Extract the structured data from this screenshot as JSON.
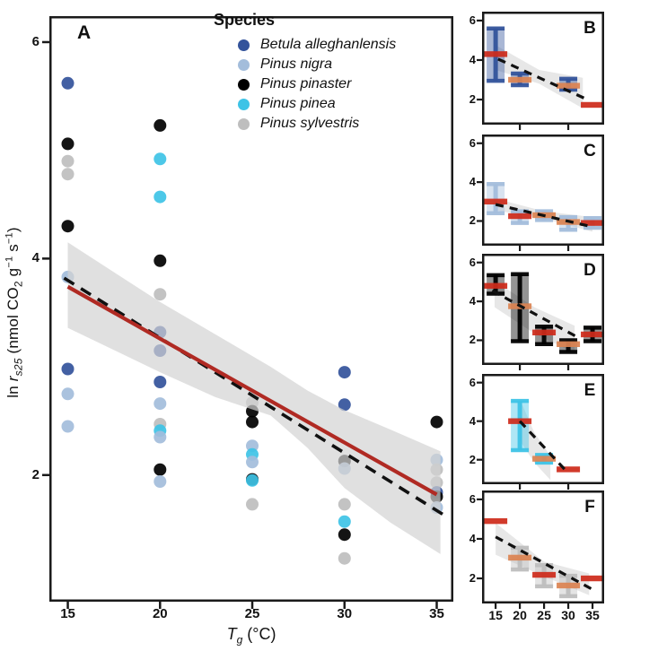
{
  "figure": {
    "species_colors": {
      "betula": "#33539B",
      "nigra": "#A3BDDB",
      "pinaster": "#000000",
      "pinea": "#3EC3E6",
      "sylvestris": "#BEBEBE"
    },
    "accent": {
      "red_line": "#B02A23",
      "mean_red": "#CE2B1B",
      "mean_orange": "#DB8352",
      "band": "#D3D3D3",
      "axis": "#1A1A1A"
    },
    "y_axis_label_parts": [
      {
        "t": "ln "
      },
      {
        "t": "r",
        "i": true
      },
      {
        "t": "s25",
        "sub": true,
        "i": true
      },
      {
        "t": "  (nmol CO"
      },
      {
        "t": "2",
        "sub": true
      },
      {
        "t": " g"
      },
      {
        "t": "−1",
        "sup": true
      },
      {
        "t": " s"
      },
      {
        "t": "−1",
        "sup": true
      },
      {
        "t": ")"
      }
    ],
    "x_axis_label_parts": [
      {
        "t": "T",
        "i": true
      },
      {
        "t": "g",
        "sub": true,
        "i": true
      },
      {
        "t": " (°C)"
      }
    ]
  },
  "legend": {
    "title": "Species",
    "items": [
      {
        "label": "Betula alleghanlensis",
        "color_key": "betula"
      },
      {
        "label": "Pinus nigra",
        "color_key": "nigra"
      },
      {
        "label": "Pinus pinaster",
        "color_key": "pinaster"
      },
      {
        "label": "Pinus pinea",
        "color_key": "pinea"
      },
      {
        "label": "Pinus sylvestris",
        "color_key": "sylvestris"
      }
    ]
  },
  "chart_data": [
    {
      "id": "A",
      "label": "A",
      "type": "scatter",
      "xlabel": "Tg (°C)",
      "ylabel": "ln rs25 (nmol CO2 g-1 s-1)",
      "xlim": [
        14,
        35.9
      ],
      "ylim": [
        0.83,
        6.24
      ],
      "x_ticks": [
        15,
        20,
        25,
        30,
        35
      ],
      "y_ticks": [
        2,
        4,
        6
      ],
      "grid": false,
      "points": [
        [
          15,
          5.62,
          "betula"
        ],
        [
          15,
          5.06,
          "pinaster"
        ],
        [
          15,
          4.9,
          "sylvestris"
        ],
        [
          15,
          4.78,
          "sylvestris"
        ],
        [
          15,
          4.3,
          "pinaster"
        ],
        [
          15,
          3.83,
          "nigra"
        ],
        [
          15,
          2.98,
          "betula"
        ],
        [
          15,
          2.75,
          "nigra"
        ],
        [
          15,
          2.45,
          "nigra"
        ],
        [
          20,
          5.23,
          "pinaster"
        ],
        [
          20,
          4.92,
          "pinea"
        ],
        [
          20,
          4.57,
          "pinea"
        ],
        [
          20,
          3.98,
          "pinaster"
        ],
        [
          20,
          3.67,
          "sylvestris"
        ],
        [
          20,
          3.32,
          "betula"
        ],
        [
          20,
          3.15,
          "betula"
        ],
        [
          20,
          2.86,
          "betula"
        ],
        [
          20,
          2.66,
          "nigra"
        ],
        [
          20,
          2.47,
          "sylvestris"
        ],
        [
          20,
          2.41,
          "pinea"
        ],
        [
          20,
          2.35,
          "nigra"
        ],
        [
          20,
          2.05,
          "pinaster"
        ],
        [
          20,
          1.94,
          "nigra"
        ],
        [
          25,
          2.67,
          "sylvestris"
        ],
        [
          25,
          2.59,
          "pinaster"
        ],
        [
          25,
          2.49,
          "pinaster"
        ],
        [
          25,
          2.27,
          "nigra"
        ],
        [
          25,
          2.19,
          "pinea"
        ],
        [
          25,
          2.12,
          "nigra"
        ],
        [
          25,
          1.96,
          "pinaster"
        ],
        [
          25,
          1.95,
          "pinea"
        ],
        [
          25,
          1.73,
          "sylvestris"
        ],
        [
          30,
          2.95,
          "betula"
        ],
        [
          30,
          2.65,
          "betula"
        ],
        [
          30,
          2.13,
          "pinaster"
        ],
        [
          30,
          2.06,
          "nigra"
        ],
        [
          30,
          1.73,
          "sylvestris"
        ],
        [
          30,
          1.57,
          "pinea"
        ],
        [
          30,
          1.45,
          "pinaster"
        ],
        [
          30,
          1.23,
          "sylvestris"
        ],
        [
          35,
          2.49,
          "pinaster"
        ],
        [
          35,
          2.14,
          "nigra"
        ],
        [
          35,
          2.05,
          "sylvestris"
        ],
        [
          35,
          1.93,
          "sylvestris"
        ],
        [
          35,
          1.84,
          "betula"
        ],
        [
          35,
          1.8,
          "pinaster"
        ],
        [
          35,
          1.7,
          "nigra"
        ]
      ],
      "regression_red": [
        15,
        3.74,
        35,
        1.82
      ],
      "regression_dashed": [
        14.8,
        3.82,
        35.4,
        1.63
      ],
      "band": [
        [
          15,
          4.15,
          3.36
        ],
        [
          20,
          3.6,
          2.95
        ],
        [
          23,
          3.3,
          2.72
        ],
        [
          26,
          3.0,
          2.55
        ],
        [
          28,
          2.78,
          2.25
        ],
        [
          30,
          2.6,
          1.88
        ],
        [
          32.5,
          2.42,
          1.56
        ],
        [
          35.2,
          2.22,
          1.27
        ]
      ]
    },
    {
      "id": "B",
      "label": "B",
      "type": "errorbar",
      "species": "betula",
      "xlim": [
        12.2,
        37.4
      ],
      "ylim": [
        0.73,
        6.45
      ],
      "x_tick_marks": [
        20,
        30
      ],
      "y_ticks": [
        2,
        4,
        6
      ],
      "bars": [
        {
          "x": 15,
          "lo": 2.95,
          "hi": 5.6,
          "mean": 4.3,
          "mean_color": "red"
        },
        {
          "x": 20,
          "lo": 2.73,
          "hi": 3.32,
          "mean": 3.0,
          "mean_color": "orange"
        },
        {
          "x": 30,
          "lo": 2.5,
          "hi": 3.05,
          "mean": 2.7,
          "mean_color": "orange"
        },
        {
          "x": 35,
          "lo": null,
          "hi": null,
          "mean": 1.73,
          "mean_color": "red"
        }
      ],
      "dashed": [
        15.5,
        4.05,
        33.5,
        2.05
      ],
      "band": [
        [
          15,
          4.75,
          3.5
        ],
        [
          24,
          3.5,
          2.8
        ],
        [
          33,
          3.1,
          1.55
        ]
      ]
    },
    {
      "id": "C",
      "label": "C",
      "type": "errorbar",
      "species": "nigra",
      "xlim": [
        12.2,
        37.4
      ],
      "ylim": [
        0.73,
        6.45
      ],
      "x_tick_marks": [
        20,
        30
      ],
      "y_ticks": [
        2,
        4,
        6
      ],
      "bars": [
        {
          "x": 15,
          "lo": 2.4,
          "hi": 3.9,
          "mean": 3.0,
          "mean_color": "red"
        },
        {
          "x": 20,
          "lo": 1.9,
          "hi": 2.5,
          "mean": 2.25,
          "mean_color": "red"
        },
        {
          "x": 25,
          "lo": 2.05,
          "hi": 2.5,
          "mean": 2.3,
          "mean_color": "orange"
        },
        {
          "x": 30,
          "lo": 1.55,
          "hi": 2.2,
          "mean": 1.95,
          "mean_color": "orange"
        },
        {
          "x": 35,
          "lo": 1.65,
          "hi": 2.15,
          "mean": 1.9,
          "mean_color": "red"
        }
      ],
      "dashed": [
        15,
        2.85,
        35,
        1.7
      ],
      "band": [
        [
          15,
          3.15,
          2.55
        ],
        [
          25,
          2.5,
          2.12
        ],
        [
          35,
          2.2,
          1.45
        ]
      ]
    },
    {
      "id": "D",
      "label": "D",
      "type": "errorbar",
      "species": "pinaster",
      "xlim": [
        12.2,
        37.4
      ],
      "ylim": [
        0.73,
        6.45
      ],
      "x_tick_marks": [
        20,
        30
      ],
      "y_ticks": [
        2,
        4,
        6
      ],
      "bars": [
        {
          "x": 15,
          "lo": 4.4,
          "hi": 5.35,
          "mean": 4.8,
          "mean_color": "red"
        },
        {
          "x": 20,
          "lo": 1.95,
          "hi": 5.4,
          "mean": 3.75,
          "mean_color": "orange"
        },
        {
          "x": 25,
          "lo": 1.8,
          "hi": 2.7,
          "mean": 2.4,
          "mean_color": "red"
        },
        {
          "x": 30,
          "lo": 1.4,
          "hi": 2.0,
          "mean": 1.8,
          "mean_color": "orange"
        },
        {
          "x": 35,
          "lo": 1.95,
          "hi": 2.65,
          "mean": 2.3,
          "mean_color": "red"
        }
      ],
      "dashed": [
        14.3,
        4.55,
        31.6,
        2.2
      ],
      "band": [
        [
          14.8,
          5.05,
          3.7
        ],
        [
          23,
          3.7,
          2.35
        ],
        [
          31.3,
          2.75,
          1.35
        ]
      ]
    },
    {
      "id": "E",
      "label": "E",
      "type": "errorbar",
      "species": "pinea",
      "xlim": [
        12.2,
        37.4
      ],
      "ylim": [
        0.73,
        6.45
      ],
      "x_tick_marks": [
        20,
        30
      ],
      "y_ticks": [
        2,
        4,
        6
      ],
      "bars": [
        {
          "x": 20,
          "lo": 2.5,
          "hi": 5.05,
          "mean": 4.0,
          "mean_color": "red"
        },
        {
          "x": 25,
          "lo": 1.85,
          "hi": 2.25,
          "mean": 2.05,
          "mean_color": "orange"
        },
        {
          "x": 30,
          "lo": null,
          "hi": null,
          "mean": 1.5,
          "mean_color": "red"
        }
      ],
      "dashed": [
        20,
        4.0,
        30,
        1.3
      ],
      "band": [
        [
          20,
          5.15,
          3.0
        ],
        [
          23,
          3.4,
          1.85
        ],
        [
          26.3,
          2.2,
          0.95
        ]
      ]
    },
    {
      "id": "F",
      "label": "F",
      "type": "errorbar",
      "species": "sylvestris",
      "xlim": [
        12.2,
        37.4
      ],
      "ylim": [
        0.73,
        6.45
      ],
      "x_tick_marks": [
        15,
        20,
        25,
        30,
        35
      ],
      "x_tick_labels": [
        "15",
        "20",
        "25",
        "30",
        "35"
      ],
      "y_ticks": [
        2,
        4,
        6
      ],
      "bars": [
        {
          "x": 15,
          "lo": null,
          "hi": null,
          "mean": 4.9,
          "mean_color": "red"
        },
        {
          "x": 20,
          "lo": 2.45,
          "hi": 3.55,
          "mean": 3.05,
          "mean_color": "orange"
        },
        {
          "x": 25,
          "lo": 1.6,
          "hi": 2.67,
          "mean": 2.18,
          "mean_color": "red"
        },
        {
          "x": 30,
          "lo": 1.1,
          "hi": 2.13,
          "mean": 1.64,
          "mean_color": "orange"
        },
        {
          "x": 35,
          "lo": null,
          "hi": null,
          "mean": 2.0,
          "mean_color": "red"
        }
      ],
      "dashed": [
        15,
        4.1,
        35.3,
        1.4
      ],
      "band": [
        [
          15,
          4.8,
          3.2
        ],
        [
          25,
          2.85,
          2.1
        ],
        [
          34.3,
          2.25,
          1.15
        ]
      ]
    }
  ]
}
